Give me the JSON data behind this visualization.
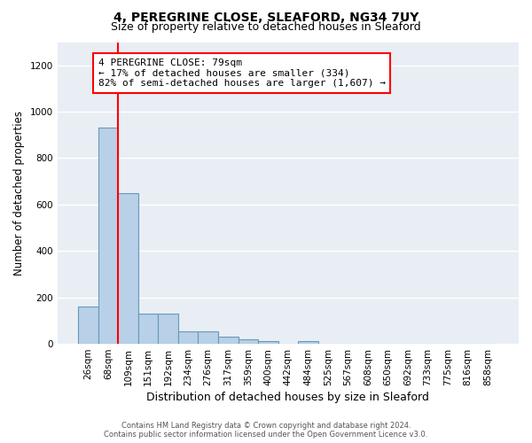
{
  "title1": "4, PEREGRINE CLOSE, SLEAFORD, NG34 7UY",
  "title2": "Size of property relative to detached houses in Sleaford",
  "xlabel": "Distribution of detached houses by size in Sleaford",
  "ylabel": "Number of detached properties",
  "bar_labels": [
    "26sqm",
    "68sqm",
    "109sqm",
    "151sqm",
    "192sqm",
    "234sqm",
    "276sqm",
    "317sqm",
    "359sqm",
    "400sqm",
    "442sqm",
    "484sqm",
    "525sqm",
    "567sqm",
    "608sqm",
    "650sqm",
    "692sqm",
    "733sqm",
    "775sqm",
    "816sqm",
    "858sqm"
  ],
  "bar_values": [
    160,
    930,
    650,
    130,
    130,
    55,
    55,
    30,
    20,
    10,
    0,
    10,
    0,
    0,
    0,
    0,
    0,
    0,
    0,
    0,
    0
  ],
  "bar_color": "#b8d0e8",
  "bar_edge_color": "#6699bb",
  "red_line_x": 1.48,
  "annotation_text": "4 PEREGRINE CLOSE: 79sqm\n← 17% of detached houses are smaller (334)\n82% of semi-detached houses are larger (1,607) →",
  "annotation_box_color": "white",
  "annotation_box_edge": "red",
  "ylim": [
    0,
    1300
  ],
  "yticks": [
    0,
    200,
    400,
    600,
    800,
    1000,
    1200
  ],
  "footer_line1": "Contains HM Land Registry data © Crown copyright and database right 2024.",
  "footer_line2": "Contains public sector information licensed under the Open Government Licence v3.0.",
  "bg_color": "#e8eef4",
  "grid_color": "#ffffff",
  "title1_fontsize": 10,
  "title2_fontsize": 9,
  "tick_fontsize": 7.5,
  "ylabel_fontsize": 8.5,
  "xlabel_fontsize": 9,
  "annot_fontsize": 8,
  "footer_fontsize": 6
}
